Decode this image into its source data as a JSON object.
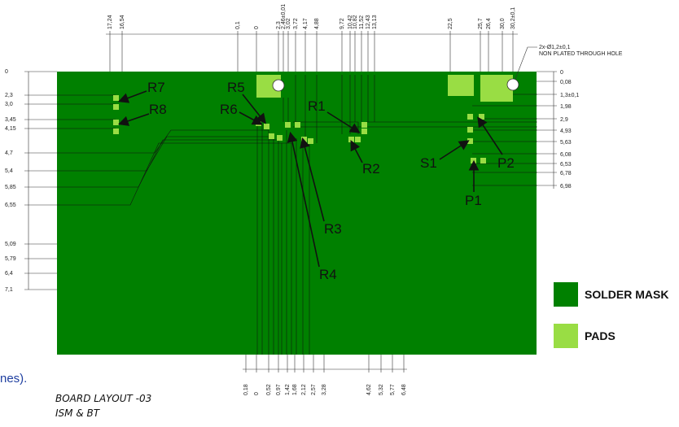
{
  "top_dims": [
    "17,24",
    "16,54",
    "0,1",
    "0",
    "2,3",
    "2,46±0,01",
    "3,02",
    "3,72",
    "4,17",
    "4,88",
    "9,72",
    "10,42",
    "10,82",
    "11,52",
    "12,43",
    "13,13",
    "22,5",
    "25,7",
    "26,4",
    "30,0",
    "30,2±0,1"
  ],
  "bottom_dims": [
    "0,18",
    "0",
    "0,52",
    "0,97",
    "1,42",
    "1,68",
    "2,12",
    "2,57",
    "3,28",
    "4,62",
    "5,32",
    "5,77",
    "6,48"
  ],
  "left_dims": [
    "0",
    "2,3",
    "3,0",
    "3,45",
    "4,15",
    "4,7",
    "5,4",
    "5,85",
    "6,55",
    "5,09",
    "5,79",
    "6,4",
    "7,1"
  ],
  "right_dims": [
    "0",
    "0,08",
    "1,3±0,1",
    "1,98",
    "2,9",
    "4,93",
    "5,63",
    "6,08",
    "6,53",
    "6,78",
    "6,98"
  ],
  "hole_note": {
    "line1": "2x-Ø1,2±0,1",
    "line2": "NON PLATED THROUGH HOLE"
  },
  "component_labels": [
    "R7",
    "R8",
    "R5",
    "R6",
    "R1",
    "R2",
    "R3",
    "R4",
    "S1",
    "P2",
    "P1"
  ],
  "legend": {
    "solder_mask_label": "SOLDER MASK",
    "pads_label": "PADS",
    "solder_mask_color": "#008000",
    "pads_color": "#99dd44"
  },
  "title": {
    "line1": "BOARD LAYOUT -03",
    "line2": "ISM & BT"
  },
  "fragment_text": "nes)."
}
